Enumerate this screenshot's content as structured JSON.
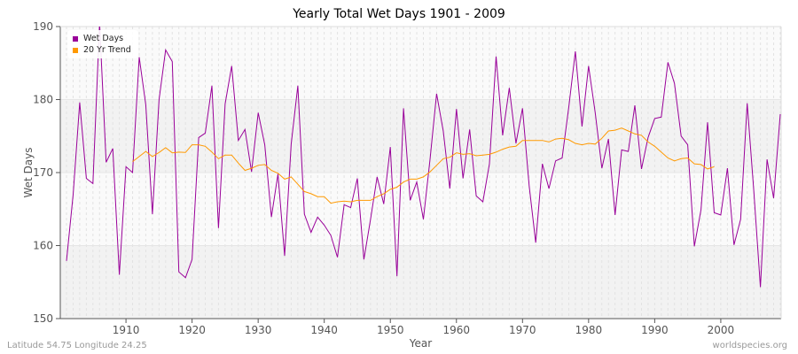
{
  "chart_data": {
    "type": "line",
    "title": "Yearly Total Wet Days 1901 - 2009",
    "xlabel": "Year",
    "ylabel": "Wet Days",
    "xlim": [
      1901,
      2009
    ],
    "ylim": [
      150,
      190
    ],
    "x_ticks": [
      1910,
      1920,
      1930,
      1940,
      1950,
      1960,
      1970,
      1980,
      1990,
      2000
    ],
    "y_ticks": [
      150,
      160,
      170,
      180,
      190
    ],
    "grid": true,
    "legend_position": "top-left",
    "series": [
      {
        "name": "Wet Days",
        "color": "#990099",
        "x_start": 1901,
        "values": [
          157.9,
          167.0,
          179.6,
          169.2,
          168.5,
          190.5,
          171.4,
          173.3,
          156.0,
          170.8,
          170.0,
          185.8,
          179.3,
          164.3,
          180.0,
          186.8,
          185.2,
          156.4,
          155.6,
          158.1,
          174.8,
          175.4,
          181.9,
          162.4,
          179.4,
          184.6,
          174.4,
          175.9,
          170.1,
          178.2,
          173.8,
          163.9,
          169.8,
          158.6,
          173.9,
          181.9,
          164.3,
          161.8,
          163.9,
          162.8,
          161.4,
          158.4,
          165.6,
          165.2,
          169.2,
          158.1,
          163.6,
          169.4,
          165.7,
          173.5,
          155.8,
          178.8,
          166.2,
          168.7,
          163.6,
          171.8,
          180.8,
          175.7,
          167.8,
          178.7,
          169.2,
          175.9,
          166.8,
          166.0,
          171.2,
          185.9,
          175.1,
          181.6,
          174.0,
          178.8,
          168.2,
          160.4,
          171.2,
          167.8,
          171.6,
          172.0,
          179.0,
          186.6,
          176.3,
          184.6,
          178.2,
          170.6,
          174.6,
          164.2,
          173.1,
          172.9,
          179.2,
          170.5,
          174.8,
          177.4,
          177.6,
          185.1,
          182.2,
          175.0,
          173.8,
          159.9,
          164.9,
          176.9,
          164.5,
          164.2,
          170.6,
          160.1,
          163.6,
          179.5,
          167.4,
          154.3,
          171.8,
          166.5,
          178.0
        ]
      },
      {
        "name": "20 Yr Trend",
        "color": "#ff9900",
        "x_start": 1911,
        "values": [
          171.5,
          172.2,
          172.9,
          172.2,
          172.75,
          173.4,
          172.7,
          172.8,
          172.75,
          173.8,
          173.8,
          173.6,
          172.8,
          171.9,
          172.4,
          172.4,
          171.3,
          170.3,
          170.6,
          171.0,
          171.1,
          170.3,
          169.9,
          169.1,
          169.4,
          168.4,
          167.4,
          167.1,
          166.7,
          166.7,
          165.8,
          166.0,
          166.1,
          166.0,
          166.2,
          166.2,
          166.2,
          166.7,
          167.1,
          167.7,
          168.0,
          168.7,
          169.1,
          169.1,
          169.4,
          170.1,
          171.0,
          171.9,
          172.1,
          172.7,
          172.5,
          172.6,
          172.3,
          172.4,
          172.5,
          172.8,
          173.2,
          173.5,
          173.6,
          174.4,
          174.4,
          174.4,
          174.4,
          174.2,
          174.6,
          174.7,
          174.5,
          174.0,
          173.8,
          174.0,
          173.9,
          174.7,
          175.7,
          175.8,
          176.1,
          175.7,
          175.3,
          175.1,
          174.2,
          173.6,
          172.8,
          172.0,
          171.6,
          171.9,
          172.0,
          171.2,
          171.1,
          170.5,
          170.8
        ]
      }
    ]
  },
  "footer": {
    "left": "Latitude 54.75 Longitude 24.25",
    "right": "worldspecies.org"
  }
}
